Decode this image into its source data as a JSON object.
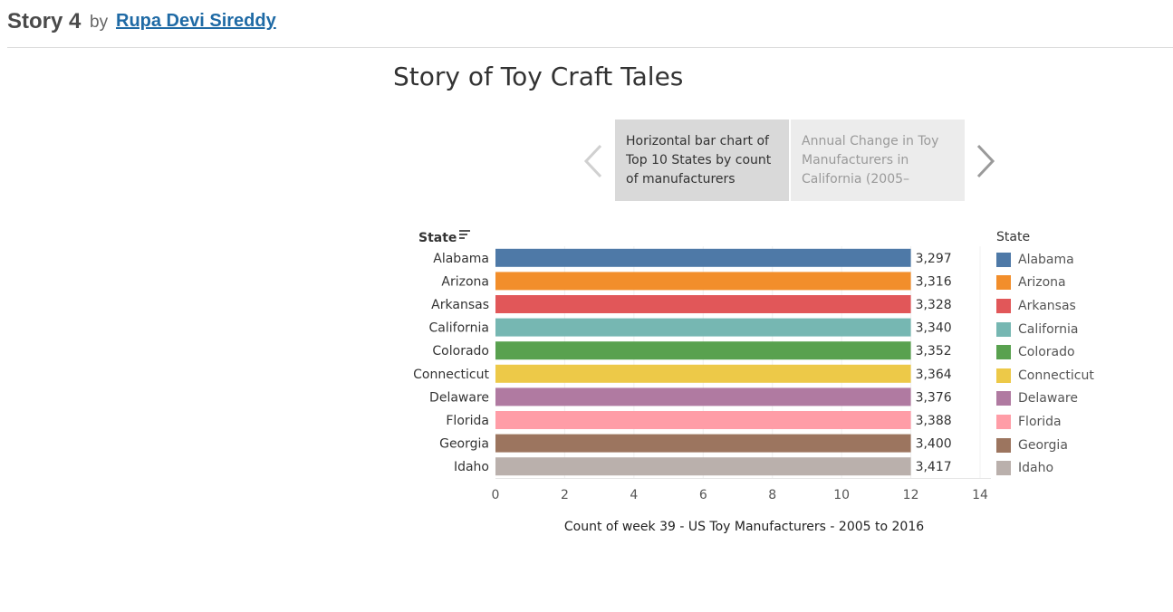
{
  "header": {
    "story_title": "Story 4",
    "by": "by",
    "author": "Rupa Devi Sireddy"
  },
  "viz_title": "Story of Toy Craft Tales",
  "story_points": [
    {
      "label": "Horizontal bar chart of Top 10 States by count of manufacturers"
    },
    {
      "label": "Annual Change in Toy Manufacturers in California (2005–"
    }
  ],
  "icons": {
    "prev": "chevron-left-icon",
    "next": "chevron-right-icon",
    "sort": "sort-icon"
  },
  "chart_data": {
    "type": "bar",
    "orientation": "horizontal",
    "row_header": "State",
    "categories": [
      "Alabama",
      "Arizona",
      "Arkansas",
      "California",
      "Colorado",
      "Connecticut",
      "Delaware",
      "Florida",
      "Georgia",
      "Idaho"
    ],
    "values": [
      12,
      12,
      12,
      12,
      12,
      12,
      12,
      12,
      12,
      12
    ],
    "data_labels": [
      "3,297",
      "3,316",
      "3,328",
      "3,340",
      "3,352",
      "3,364",
      "3,376",
      "3,388",
      "3,400",
      "3,417"
    ],
    "colors": [
      "#4e79a7",
      "#f28e2b",
      "#e15759",
      "#76b7b2",
      "#59a14f",
      "#edc948",
      "#b07aa1",
      "#ff9da7",
      "#9c755f",
      "#bab0ac"
    ],
    "xlabel": "Count of week 39 - US Toy Manufacturers - 2005 to 2016",
    "xlim": [
      0,
      14
    ],
    "xticks": [
      0,
      2,
      4,
      6,
      8,
      10,
      12,
      14
    ],
    "grid": true,
    "legend": {
      "title": "State",
      "placement": "right",
      "items": [
        "Alabama",
        "Arizona",
        "Arkansas",
        "California",
        "Colorado",
        "Connecticut",
        "Delaware",
        "Florida",
        "Georgia",
        "Idaho"
      ]
    }
  }
}
